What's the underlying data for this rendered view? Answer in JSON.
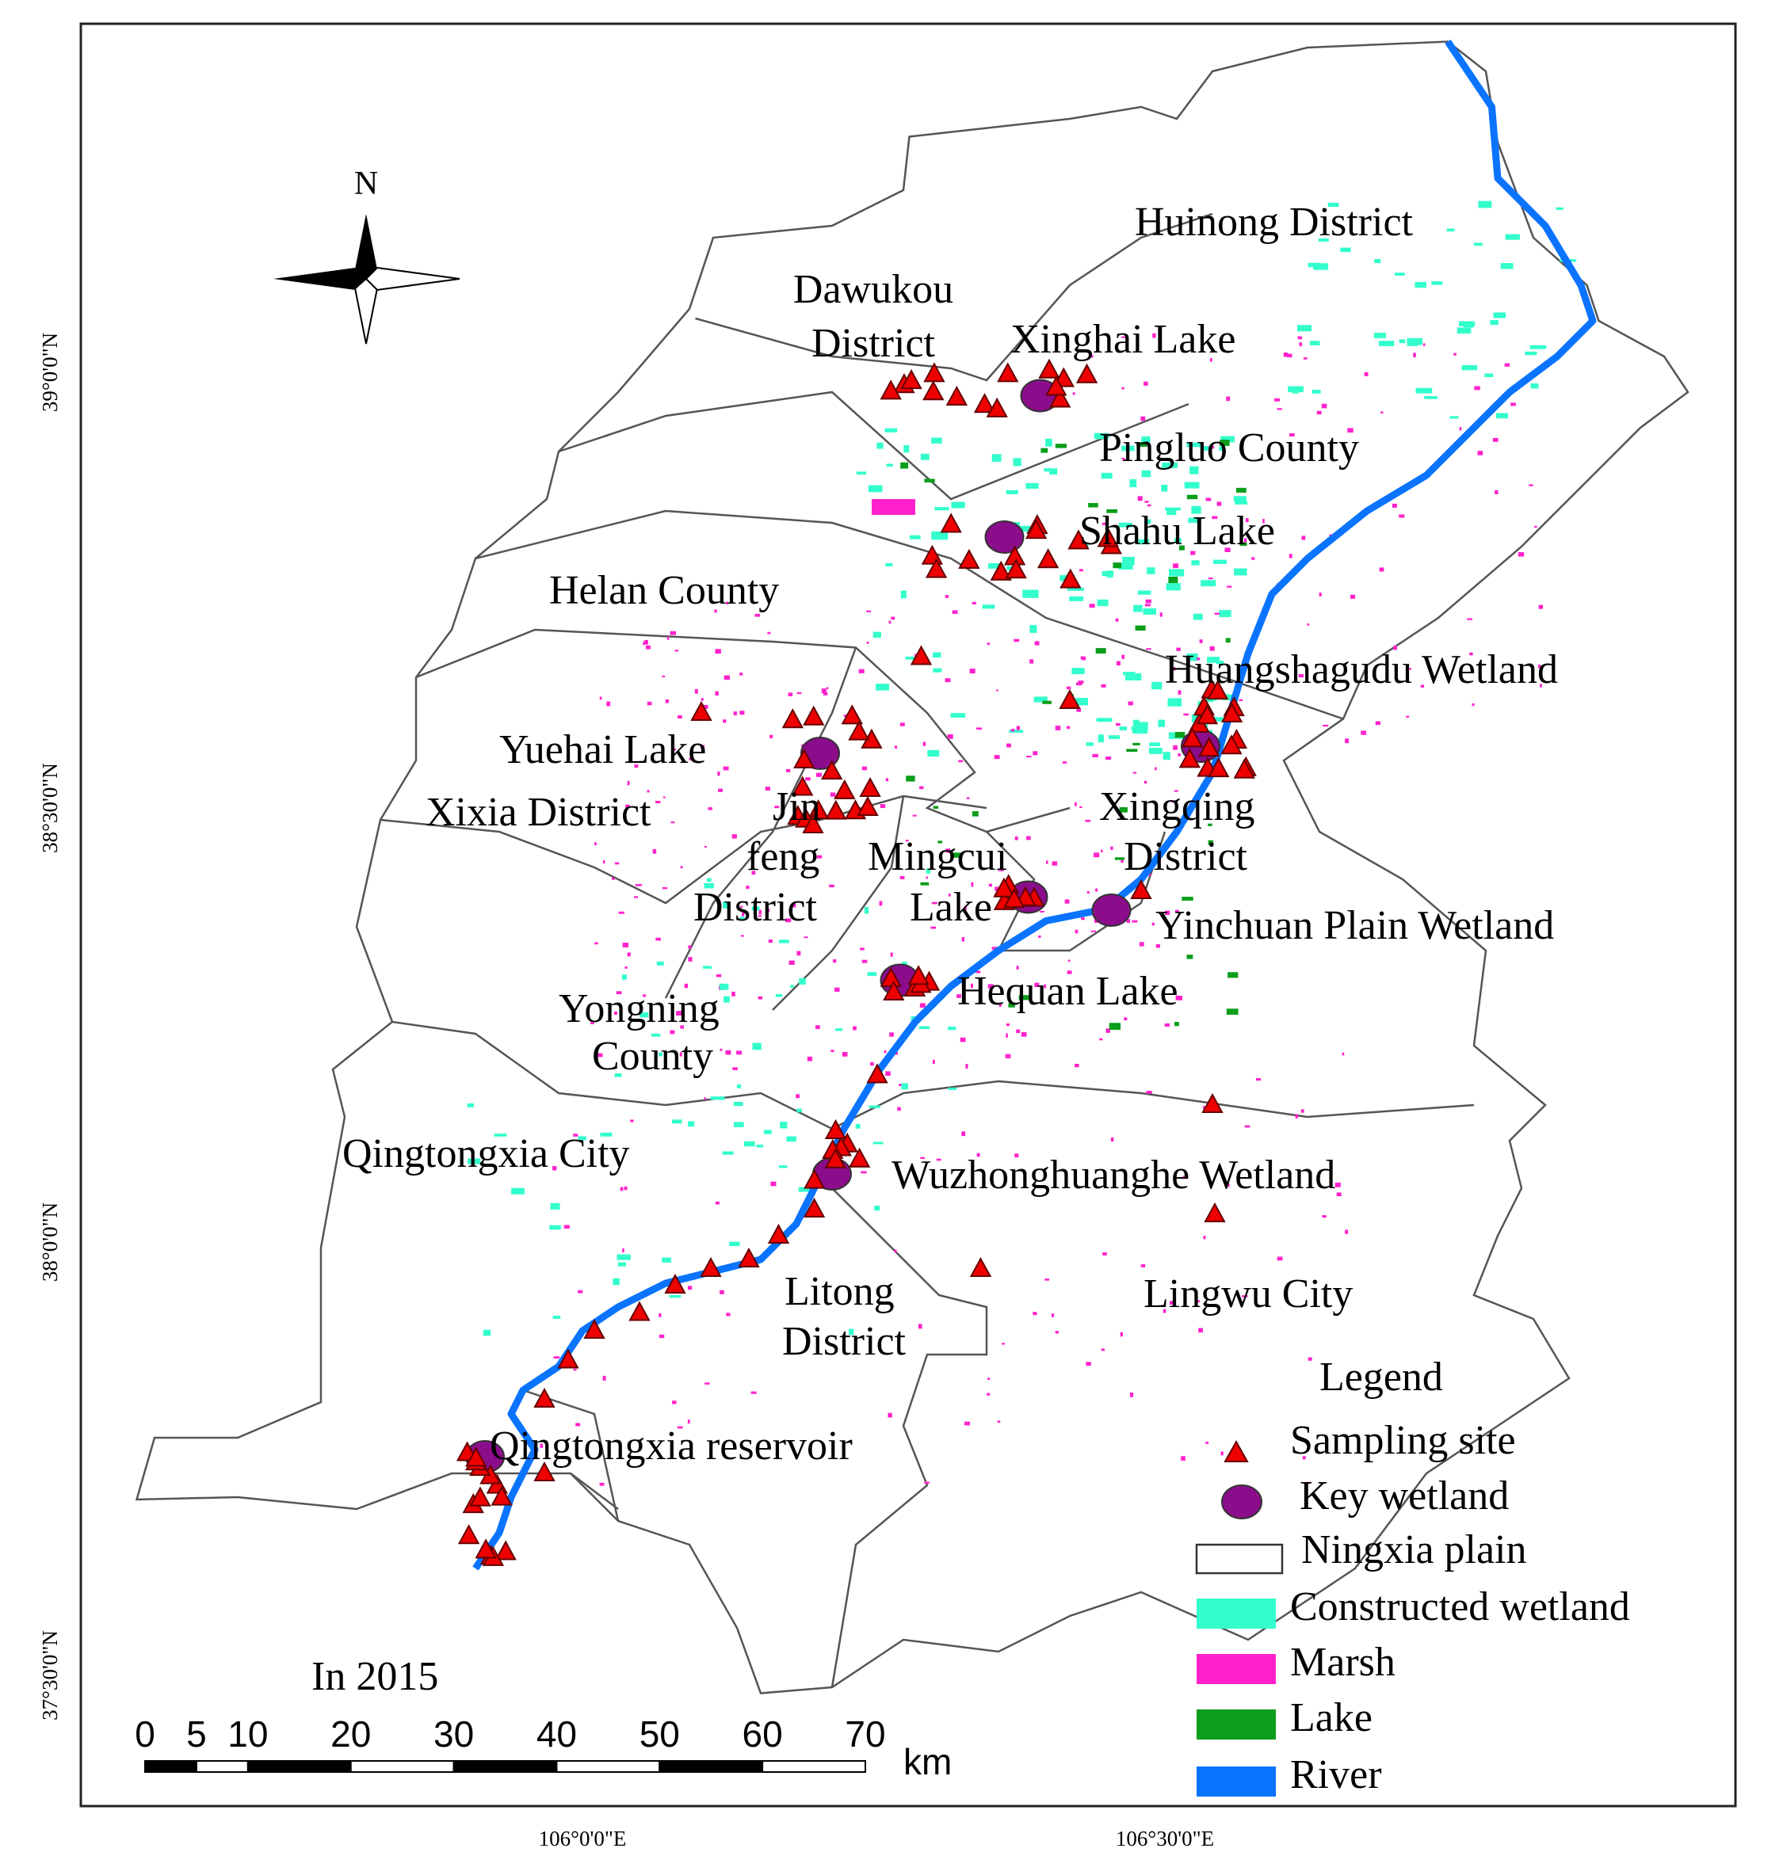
{
  "title": "In 2015",
  "north": "N",
  "labels": [
    "Huinong District",
    "Dawukou",
    "District",
    "Xinghai Lake",
    "Pingluo County",
    "Shahu Lake",
    "Helan County",
    "Huangshagudu Wetland",
    "Yuehai Lake",
    "Xixia District",
    "Jin",
    "feng",
    "District",
    "Mingcui",
    "Lake",
    "Xingqing",
    "District",
    "Yinchuan Plain Wetland",
    "Hequan Lake",
    "Yongning",
    "County",
    "Qingtongxia City",
    "Wuzhonghuanghe Wetland",
    "Litong",
    "District",
    "Lingwu City",
    "Qingtongxia reservoir"
  ],
  "coordinates": {
    "lat": [
      "39°0'0\"N",
      "38°30'0\"N",
      "38°0'0\"N",
      "37°30'0\"N"
    ],
    "lon": [
      "106°0'0\"E",
      "106°30'0\"E"
    ]
  },
  "legend": {
    "title": "Legend",
    "items": [
      "Sampling site",
      "Key wetland",
      "Ningxia plain",
      "Constructed wetland",
      "Marsh",
      "Lake",
      "River"
    ]
  },
  "scale_bar": {
    "ticks": [
      0,
      5,
      10,
      20,
      30,
      40,
      50,
      60,
      70
    ],
    "unit": "km"
  }
}
